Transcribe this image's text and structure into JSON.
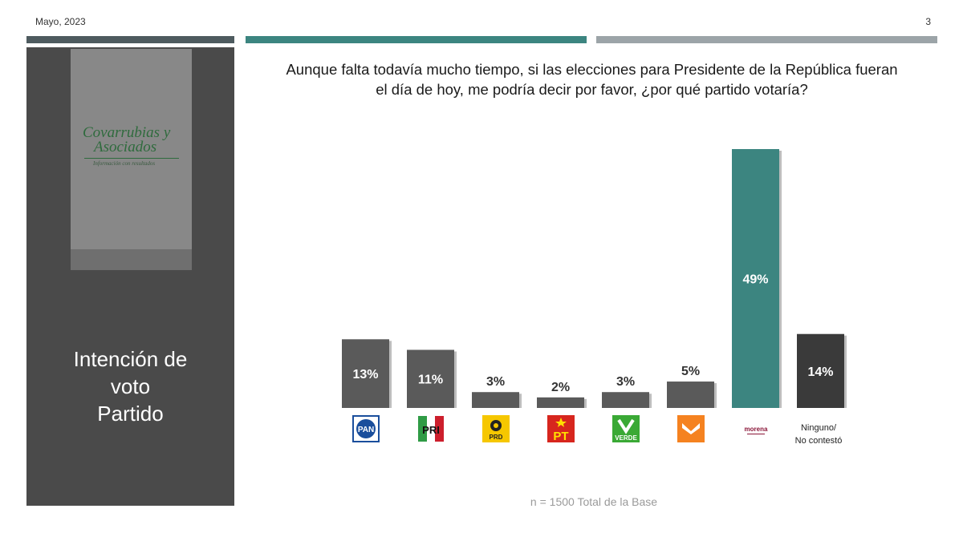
{
  "header": {
    "date": "Mayo, 2023",
    "page_number": "3"
  },
  "colors": {
    "rule_left": "#4e5b5f",
    "rule_mid": "#3c8580",
    "rule_right": "#9ca4a8",
    "bar_default": "#5a5a5a",
    "bar_highlight": "#3c8580",
    "bar_none": "#3a3a3a"
  },
  "sidebar": {
    "logo": {
      "line1": "Covarrubias y",
      "line2": "Asociados",
      "tagline": "Información con resultados"
    },
    "title_lines": [
      "Intención de",
      "voto",
      "Partido"
    ]
  },
  "question_lines": [
    "Aunque falta todavía mucho tiempo, si las elecciones para Presidente de la República fueran",
    "el día de hoy, me podría decir por favor, ¿por qué partido votaría?"
  ],
  "chart_data": {
    "type": "bar",
    "categories": [
      "PAN",
      "PRI",
      "PRD",
      "PT",
      "VERDE",
      "MC",
      "morena",
      "Ninguno/ No contestó"
    ],
    "values": [
      13,
      11,
      3,
      2,
      3,
      5,
      49,
      14
    ],
    "value_labels": [
      "13%",
      "11%",
      "3%",
      "2%",
      "3%",
      "5%",
      "49%",
      "14%"
    ],
    "highlight_index": 6,
    "ylim": [
      0,
      49
    ],
    "grid": false,
    "legend": "none"
  },
  "party_logos": [
    {
      "icon": "pan-logo-icon",
      "label": "PAN",
      "bg": "#ffffff",
      "fg": "#1a4e9c"
    },
    {
      "icon": "pri-logo-icon",
      "label": "PRI",
      "bg": "#ffffff",
      "fg": "#cc1e2c"
    },
    {
      "icon": "prd-logo-icon",
      "label": "PRD",
      "bg": "#f6c700",
      "fg": "#222222"
    },
    {
      "icon": "pt-logo-icon",
      "label": "PT",
      "bg": "#d7261e",
      "fg": "#ffe000"
    },
    {
      "icon": "verde-logo-icon",
      "label": "VERDE",
      "bg": "#3aa935",
      "fg": "#ffffff"
    },
    {
      "icon": "mc-logo-icon",
      "label": "",
      "bg": "#f58220",
      "fg": "#ffffff"
    },
    {
      "icon": "morena-logo-icon",
      "label": "morena",
      "bg": "#ffffff",
      "fg": "#8a1538"
    }
  ],
  "none_label_lines": [
    "Ninguno/",
    "No contestó"
  ],
  "footnote": "n = 1500 Total de la Base"
}
